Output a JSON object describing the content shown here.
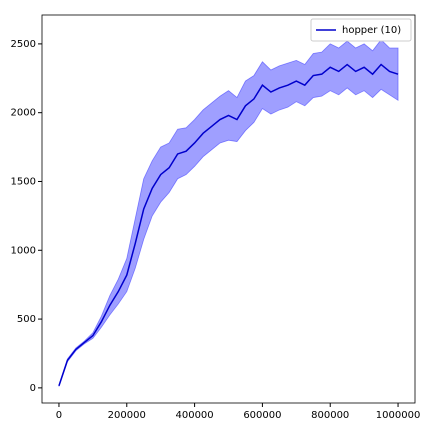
{
  "chart_data": {
    "type": "line",
    "x": [
      0,
      25000,
      50000,
      75000,
      100000,
      125000,
      150000,
      175000,
      200000,
      225000,
      250000,
      275000,
      300000,
      325000,
      350000,
      375000,
      400000,
      425000,
      450000,
      475000,
      500000,
      525000,
      550000,
      575000,
      600000,
      625000,
      650000,
      675000,
      700000,
      725000,
      750000,
      775000,
      800000,
      825000,
      850000,
      875000,
      900000,
      925000,
      950000,
      975000,
      1000000
    ],
    "series": [
      {
        "name": "hopper (10)",
        "color": "#0000cc",
        "band_color": "#4040ff",
        "values": [
          15,
          200,
          280,
          330,
          380,
          480,
          600,
          700,
          820,
          1050,
          1300,
          1450,
          1550,
          1600,
          1700,
          1720,
          1780,
          1850,
          1900,
          1950,
          1980,
          1950,
          2050,
          2100,
          2200,
          2150,
          2180,
          2200,
          2230,
          2200,
          2270,
          2280,
          2330,
          2300,
          2350,
          2300,
          2330,
          2280,
          2350,
          2300,
          2280
        ],
        "lower": [
          10,
          190,
          270,
          320,
          360,
          440,
          530,
          610,
          700,
          870,
          1080,
          1250,
          1350,
          1420,
          1520,
          1550,
          1610,
          1680,
          1730,
          1780,
          1800,
          1790,
          1870,
          1930,
          2030,
          1990,
          2020,
          2040,
          2080,
          2050,
          2110,
          2120,
          2160,
          2130,
          2180,
          2130,
          2160,
          2110,
          2170,
          2130,
          2090
        ],
        "upper": [
          20,
          210,
          290,
          340,
          400,
          520,
          670,
          790,
          940,
          1230,
          1520,
          1650,
          1750,
          1780,
          1880,
          1890,
          1950,
          2020,
          2070,
          2120,
          2160,
          2110,
          2230,
          2270,
          2370,
          2310,
          2340,
          2360,
          2380,
          2350,
          2430,
          2440,
          2500,
          2470,
          2520,
          2470,
          2500,
          2450,
          2530,
          2470,
          2470
        ]
      }
    ],
    "xlim": [
      -50000,
      1050000
    ],
    "ylim": [
      -110,
      2710
    ],
    "xticks": [
      0,
      200000,
      400000,
      600000,
      800000,
      1000000
    ],
    "yticks": [
      0,
      500,
      1000,
      1500,
      2000,
      2500
    ],
    "legend": "upper right"
  }
}
